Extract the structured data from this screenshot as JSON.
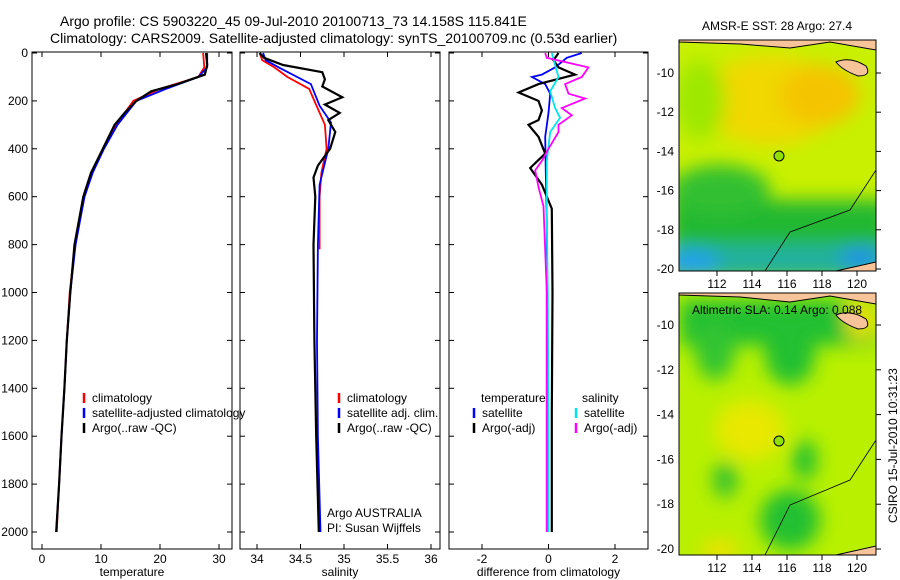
{
  "title_line1": "Argo profile: CS 5903220_45 09-Jul-2010 20100713_73 14.158S 115.841E",
  "title_line2": "Climatology: CARS2009. Satellite-adjusted climatology: synTS_20100709.nc (0.53d earlier)",
  "footer": "CSIRO 15-Jul-2010 10:31:23",
  "colors": {
    "clim": "#ff0000",
    "sat": "#0000ff",
    "argo": "#000000",
    "sal_sat": "#00e5ee",
    "sal_argo": "#ff00ff"
  },
  "chart_data": [
    {
      "type": "line",
      "xlabel": "temperature",
      "ylabel": "depth",
      "xlim": [
        -2,
        32
      ],
      "ylim": [
        2070,
        0
      ],
      "xticks": [
        "0",
        "10",
        "20",
        "30"
      ],
      "xtick_values": [
        0,
        10,
        20,
        30
      ],
      "yticks": [
        "0",
        "200",
        "400",
        "600",
        "800",
        "1000",
        "1200",
        "1400",
        "1600",
        "1800",
        "2000"
      ],
      "legend": [
        "climatology",
        "satellite-adjusted climatology",
        "Argo(..raw -QC)"
      ],
      "series": [
        {
          "name": "climatology",
          "color": "clim",
          "depth": [
            0,
            60,
            100,
            150,
            200,
            300,
            400,
            500,
            600,
            800,
            1000,
            1200,
            1400,
            1600,
            1800,
            1950,
            2000
          ],
          "values": [
            27.3,
            27.5,
            26.5,
            20,
            15.5,
            12.5,
            10.3,
            8.5,
            7.2,
            5.6,
            4.7,
            4.2,
            3.8,
            3.3,
            2.9,
            2.6,
            2.5
          ]
        },
        {
          "name": "satellite-adjusted climatology",
          "color": "sat",
          "depth": [
            0,
            60,
            100,
            150,
            200,
            300,
            400,
            500,
            600,
            800,
            1000,
            1200,
            1400,
            1600,
            1800,
            2000
          ],
          "values": [
            28,
            28,
            26.5,
            21,
            16,
            12.8,
            10.5,
            8.6,
            7.2,
            5.7,
            4.8,
            4.2,
            3.8,
            3.3,
            2.9,
            2.4
          ]
        },
        {
          "name": "Argo(..raw -QC)",
          "color": "argo",
          "depth": [
            0,
            50,
            90,
            130,
            160,
            200,
            250,
            300,
            400,
            500,
            600,
            800,
            1000,
            1200,
            1400,
            1600,
            1800,
            2000
          ],
          "values": [
            27.8,
            28,
            27.6,
            23,
            18.5,
            16,
            14,
            12.3,
            10.3,
            8.3,
            7,
            5.5,
            4.8,
            4.2,
            3.8,
            3.3,
            2.9,
            2.4
          ]
        }
      ]
    },
    {
      "type": "line",
      "xlabel": "salinity",
      "xlim": [
        33.8,
        36.1
      ],
      "ylim": [
        2070,
        0
      ],
      "xticks": [
        "34",
        "34.5",
        "35",
        "35.5",
        "36"
      ],
      "xtick_values": [
        34,
        34.5,
        35,
        35.5,
        36
      ],
      "legend": [
        "climatology",
        "satellite adj. clim.",
        "Argo(..raw -QC)"
      ],
      "annotation": [
        "Argo AUSTRALIA",
        "PI: Susan Wijffels"
      ],
      "series": [
        {
          "name": "climatology",
          "color": "clim",
          "depth": [
            0,
            30,
            60,
            100,
            150,
            200,
            300,
            400,
            500,
            600,
            820
          ],
          "values": [
            34.03,
            34.06,
            34.2,
            34.35,
            34.6,
            34.66,
            34.78,
            34.8,
            34.74,
            34.72,
            34.72
          ]
        },
        {
          "name": "satellite adj. clim.",
          "color": "sat",
          "depth": [
            0,
            30,
            60,
            130,
            220,
            290,
            400,
            550,
            800,
            1200,
            1600,
            2000
          ],
          "values": [
            34.07,
            34.1,
            34.25,
            34.62,
            34.72,
            34.85,
            34.82,
            34.72,
            34.7,
            34.69,
            34.7,
            34.73
          ]
        },
        {
          "name": "Argo(..raw -QC)",
          "color": "argo",
          "depth": [
            0,
            20,
            50,
            80,
            110,
            140,
            185,
            215,
            250,
            280,
            330,
            400,
            470,
            520,
            600,
            800,
            1200,
            1600,
            2000
          ],
          "values": [
            34.03,
            34.08,
            34.3,
            34.75,
            34.78,
            34.75,
            34.98,
            34.78,
            34.95,
            34.82,
            34.9,
            34.84,
            34.7,
            34.65,
            34.67,
            34.65,
            34.66,
            34.68,
            34.71
          ]
        }
      ]
    },
    {
      "type": "line",
      "xlabel": "difference from climatology",
      "xlim": [
        -3,
        3
      ],
      "ylim": [
        2070,
        0
      ],
      "xticks": [
        "-2",
        "0",
        "2"
      ],
      "xtick_values": [
        -2,
        0,
        2
      ],
      "legend_temperature": {
        "title": "temperature",
        "items": [
          "satellite",
          "Argo(-adj)"
        ]
      },
      "legend_salinity": {
        "title": "salinity",
        "items": [
          "satellite",
          "Argo(-adj)"
        ]
      },
      "series": [
        {
          "name": "temperature satellite",
          "color": "sat",
          "depth": [
            0,
            20,
            60,
            90,
            100,
            130,
            170,
            250,
            350,
            500,
            700,
            1000,
            2000
          ],
          "values": [
            1.0,
            0.55,
            0.2,
            -0.2,
            -0.5,
            -0.1,
            0.05,
            0.0,
            -0.1,
            -0.08,
            -0.05,
            -0.05,
            -0.05
          ]
        },
        {
          "name": "temperature Argo(-adj)",
          "color": "argo",
          "depth": [
            0,
            30,
            60,
            90,
            130,
            165,
            200,
            240,
            280,
            300,
            350,
            420,
            480,
            550,
            650,
            1000,
            1500,
            2000
          ],
          "values": [
            0.3,
            0.15,
            0.3,
            0.8,
            -0.3,
            -0.9,
            -0.3,
            -0.2,
            -0.3,
            -0.6,
            -0.3,
            -0.1,
            -0.55,
            -0.2,
            0.1,
            0.12,
            0.1,
            0.1
          ]
        },
        {
          "name": "salinity satellite",
          "color": "sal_sat",
          "depth": [
            0,
            50,
            100,
            160,
            230,
            270,
            330,
            450,
            700,
            1000,
            1600,
            2000
          ],
          "values": [
            0.1,
            0.2,
            0.3,
            0.05,
            0.2,
            0.35,
            0.05,
            -0.05,
            -0.05,
            -0.02,
            0,
            0.0
          ]
        },
        {
          "name": "salinity Argo(-adj)",
          "color": "sal_argo",
          "depth": [
            0,
            20,
            60,
            100,
            130,
            170,
            190,
            230,
            260,
            300,
            330,
            400,
            450,
            490,
            560,
            640,
            1000,
            1500,
            2000
          ],
          "values": [
            -0.1,
            -0.05,
            1.2,
            1.0,
            0.5,
            0.6,
            1.1,
            0.4,
            0.7,
            0.3,
            0.3,
            0.0,
            -0.2,
            -0.4,
            -0.3,
            -0.15,
            -0.05,
            -0.05,
            -0.05
          ]
        }
      ]
    },
    {
      "type": "heatmap",
      "title": "AMSR-E SST: 28 Argo: 27.4",
      "xticks": [
        "112",
        "114",
        "116",
        "118",
        "120"
      ],
      "xtick_values": [
        112,
        114,
        116,
        118,
        120
      ],
      "yticks": [
        "-10",
        "-12",
        "-14",
        "-16",
        "-18",
        "-20"
      ],
      "ytick_values": [
        -10,
        -12,
        -14,
        -16,
        -18,
        -20
      ],
      "xlim": [
        110.7,
        121.2
      ],
      "ylim": [
        -20.1,
        -8.3
      ],
      "argo_position": {
        "lon": 115.841,
        "lat": -14.158
      }
    },
    {
      "type": "heatmap",
      "title": "Altimetric SLA: 0.14 Argo: 0.088",
      "xticks": [
        "112",
        "114",
        "116",
        "118",
        "120"
      ],
      "xtick_values": [
        112,
        114,
        116,
        118,
        120
      ],
      "yticks": [
        "-10",
        "-12",
        "-14",
        "-16",
        "-18",
        "-20"
      ],
      "ytick_values": [
        -10,
        -12,
        -14,
        -16,
        -18,
        -20
      ],
      "xlim": [
        110.7,
        121.2
      ],
      "ylim": [
        -20.1,
        -8.5
      ],
      "argo_position": {
        "lon": 115.841,
        "lat": -14.158
      }
    }
  ]
}
